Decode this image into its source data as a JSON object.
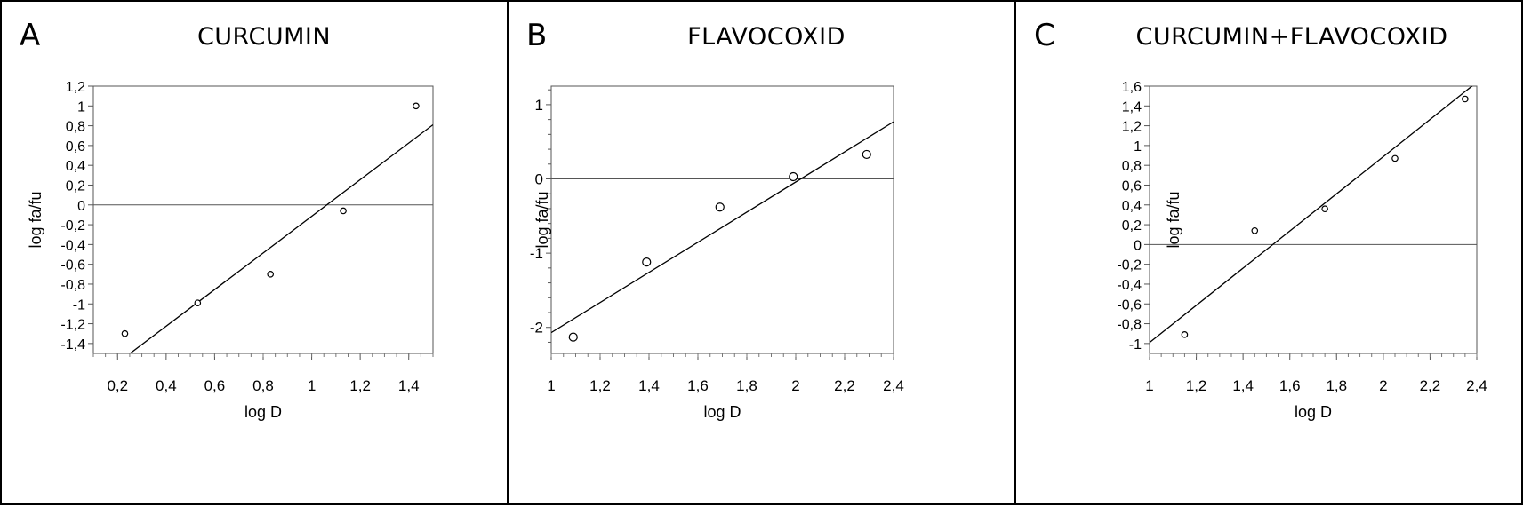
{
  "chart_data": [
    {
      "type": "scatter",
      "panel_label": "A",
      "title": "CURCUMIN",
      "xlabel": "log D",
      "ylabel": "log fa/fu",
      "xlim": [
        0.1,
        1.5
      ],
      "ylim": [
        -1.5,
        1.2
      ],
      "xticks": [
        0.2,
        0.4,
        0.6,
        0.8,
        1.0,
        1.2,
        1.4
      ],
      "xtick_labels": [
        "0,2",
        "0,4",
        "0,6",
        "0,8",
        "1",
        "1,2",
        "1,4"
      ],
      "yticks": [
        1.2,
        1.0,
        0.8,
        0.6,
        0.4,
        0.2,
        0.0,
        -0.2,
        -0.4,
        -0.6,
        -0.8,
        -1.0,
        -1.2,
        -1.4
      ],
      "ytick_labels": [
        "1,2",
        "1",
        "0,8",
        "0,6",
        "0,4",
        "0,2",
        "0",
        "-0,2",
        "-0,4",
        "-0,6",
        "-0,8",
        "-1",
        "-1,2",
        "-1,4"
      ],
      "points": [
        {
          "x": 0.23,
          "y": -1.3
        },
        {
          "x": 0.53,
          "y": -0.99
        },
        {
          "x": 0.83,
          "y": -0.7
        },
        {
          "x": 1.13,
          "y": -0.06
        },
        {
          "x": 1.43,
          "y": 1.0
        }
      ],
      "fit_line": {
        "x": [
          0.23,
          1.5
        ],
        "y": [
          -1.54,
          0.81
        ]
      },
      "zero_line": true,
      "marker_size": "small"
    },
    {
      "type": "scatter",
      "panel_label": "B",
      "title": "FLAVOCOXID",
      "xlabel": "log D",
      "ylabel": "log fa/fu",
      "xlim": [
        1.0,
        2.4
      ],
      "ylim": [
        -2.35,
        1.25
      ],
      "xticks": [
        1.0,
        1.2,
        1.4,
        1.6,
        1.8,
        2.0,
        2.2,
        2.4
      ],
      "xtick_labels": [
        "1",
        "1,2",
        "1,4",
        "1,6",
        "1,8",
        "2",
        "2,2",
        "2,4"
      ],
      "yticks": [
        1,
        0,
        -1,
        -2
      ],
      "ytick_labels": [
        "1",
        "0",
        "-1",
        "-2"
      ],
      "points": [
        {
          "x": 1.09,
          "y": -2.13
        },
        {
          "x": 1.39,
          "y": -1.12
        },
        {
          "x": 1.69,
          "y": -0.38
        },
        {
          "x": 1.99,
          "y": 0.03
        },
        {
          "x": 2.29,
          "y": 0.33
        }
      ],
      "fit_line": {
        "x": [
          1.0,
          2.4
        ],
        "y": [
          -2.07,
          0.77
        ]
      },
      "zero_line": true,
      "marker_size": "large"
    },
    {
      "type": "scatter",
      "panel_label": "C",
      "title": "CURCUMIN+FLAVOCOXID",
      "xlabel": "log D",
      "ylabel": "log fa/fu",
      "xlim": [
        1.0,
        2.4
      ],
      "ylim": [
        -1.1,
        1.6
      ],
      "xticks": [
        1.0,
        1.2,
        1.4,
        1.6,
        1.8,
        2.0,
        2.2,
        2.4
      ],
      "xtick_labels": [
        "1",
        "1,2",
        "1,4",
        "1,6",
        "1,8",
        "2",
        "2,2",
        "2,4"
      ],
      "yticks": [
        1.6,
        1.4,
        1.2,
        1.0,
        0.8,
        0.6,
        0.4,
        0.2,
        0.0,
        -0.2,
        -0.4,
        -0.6,
        -0.8,
        -1.0
      ],
      "ytick_labels": [
        "1,6",
        "1,4",
        "1,2",
        "1",
        "0,8",
        "0,6",
        "0,4",
        "0,2",
        "0",
        "-0,2",
        "-0,4",
        "-0,6",
        "-0,8",
        "-1"
      ],
      "points": [
        {
          "x": 1.15,
          "y": -0.91
        },
        {
          "x": 1.45,
          "y": 0.14
        },
        {
          "x": 1.75,
          "y": 0.36
        },
        {
          "x": 2.05,
          "y": 0.87
        },
        {
          "x": 2.35,
          "y": 1.47
        }
      ],
      "fit_line": {
        "x": [
          1.0,
          2.39
        ],
        "y": [
          -0.99,
          1.62
        ]
      },
      "zero_line": true,
      "marker_size": "small"
    }
  ]
}
